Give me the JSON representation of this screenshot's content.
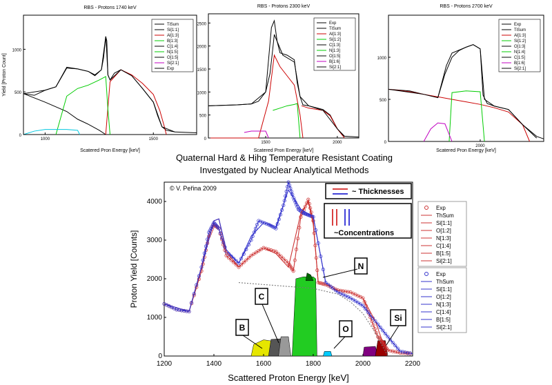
{
  "heading": {
    "line1": "Quaternal Hard & Hihg Temperature Resistant Coating",
    "line2": "Investgated by Nuclear Analytical Methods"
  },
  "chart_data": [
    {
      "type": "line",
      "title": "RBS - Protons 1740 keV",
      "xlabel": "Scatered Pron Energy [keV]",
      "ylabel": "Yield [Proton Count]",
      "xlim": [
        900,
        1700
      ],
      "ylim": [
        0,
        1400
      ],
      "xticks": [
        1000,
        1500
      ],
      "yticks": [
        0,
        500,
        1000
      ],
      "legend": [
        "TiSum",
        "Si[1:1]",
        "Al[1:3]",
        "B[1:3]",
        "C[1:4]",
        "N[1:5]",
        "O[1:5]",
        "Si[2:1]",
        "Exp"
      ],
      "series": [
        {
          "name": "Exp",
          "color": "#000000",
          "x": [
            900,
            950,
            1000,
            1050,
            1100,
            1150,
            1200,
            1230,
            1260,
            1270,
            1280,
            1285,
            1290,
            1300,
            1320,
            1350,
            1400,
            1450,
            1500,
            1520,
            1540,
            1560,
            1600,
            1700
          ],
          "y": [
            480,
            460,
            520,
            560,
            790,
            770,
            740,
            690,
            760,
            900,
            1150,
            950,
            700,
            640,
            720,
            760,
            690,
            540,
            380,
            220,
            90,
            50,
            30,
            20
          ]
        },
        {
          "name": "Si[1:1]",
          "color": "#000000",
          "x": [
            900,
            1000,
            1100,
            1150,
            1200,
            1250,
            1280
          ],
          "y": [
            480,
            380,
            270,
            180,
            120,
            50,
            0
          ]
        },
        {
          "name": "Al[1:3]",
          "color": "#cc0000",
          "x": [
            1280,
            1300,
            1350,
            1400,
            1450,
            1500,
            1530,
            1550,
            1560
          ],
          "y": [
            0,
            620,
            760,
            700,
            600,
            470,
            280,
            100,
            0
          ]
        },
        {
          "name": "B[1:3]",
          "color": "#00cc00",
          "x": [
            1050,
            1100,
            1150,
            1200,
            1250,
            1280,
            1290,
            1300
          ],
          "y": [
            0,
            450,
            540,
            580,
            640,
            680,
            300,
            0
          ]
        },
        {
          "name": "N[1:5]",
          "color": "#00c8e0",
          "x": [
            900,
            950,
            1000,
            1100,
            1150,
            1160
          ],
          "y": [
            0,
            40,
            60,
            60,
            50,
            0
          ]
        },
        {
          "name": "TiSum",
          "color": "#000000",
          "x": [
            900,
            1000,
            1050,
            1100,
            1150,
            1200,
            1230,
            1260,
            1280,
            1285,
            1290,
            1300,
            1350,
            1400,
            1450,
            1500,
            1540,
            1600
          ],
          "y": [
            480,
            520,
            560,
            780,
            770,
            740,
            700,
            760,
            1150,
            1100,
            700,
            640,
            760,
            690,
            540,
            380,
            90,
            30
          ]
        }
      ]
    },
    {
      "type": "line",
      "title": "RBS - Protons 2300 keV",
      "xlabel": "Scatered Pron Energy [keV]",
      "ylabel": "",
      "xlim": [
        1100,
        2150
      ],
      "ylim": [
        0,
        2700
      ],
      "xticks": [
        1500,
        2000
      ],
      "yticks": [
        0,
        500,
        1000,
        1500,
        2000,
        2500
      ],
      "legend": [
        "Exp",
        "TiSum",
        "Al[1:3]",
        "Si[1:2]",
        "C[1:3]",
        "N[1:3]",
        "O[1:5]",
        "B[1:6]",
        "Si[2:1]"
      ],
      "series": [
        {
          "name": "Exp",
          "color": "#000000",
          "x": [
            1100,
            1200,
            1300,
            1400,
            1450,
            1500,
            1530,
            1550,
            1560,
            1580,
            1600,
            1650,
            1700,
            1720,
            1740,
            1760,
            1800,
            1900,
            1950,
            2000,
            2050,
            2150
          ],
          "y": [
            700,
            710,
            720,
            740,
            800,
            1000,
            1400,
            1950,
            2250,
            2100,
            1850,
            1800,
            1700,
            1200,
            900,
            720,
            700,
            620,
            500,
            200,
            40,
            20
          ]
        },
        {
          "name": "Al[1:3]",
          "color": "#cc0000",
          "x": [
            1100,
            1300,
            1450,
            1520,
            1560,
            1600,
            1650,
            1700,
            1740,
            1760
          ],
          "y": [
            0,
            0,
            0,
            800,
            1800,
            1550,
            1350,
            1150,
            500,
            0
          ]
        },
        {
          "name": "N[1:3]",
          "color": "#00cc00",
          "x": [
            1550,
            1600,
            1650,
            1700,
            1720,
            1740
          ],
          "y": [
            600,
            650,
            700,
            730,
            750,
            0
          ]
        },
        {
          "name": "B[1:6]",
          "color": "#c000c0",
          "x": [
            1350,
            1400,
            1500,
            1520
          ],
          "y": [
            120,
            150,
            150,
            0
          ]
        },
        {
          "name": "Si[2:1]",
          "color": "#cc0000",
          "x": [
            1750,
            1800,
            1900,
            1950,
            2000,
            2050
          ],
          "y": [
            700,
            650,
            600,
            480,
            200,
            0
          ]
        },
        {
          "name": "TiSum",
          "color": "#000000",
          "x": [
            1100,
            1300,
            1400,
            1500,
            1540,
            1560,
            1580,
            1620,
            1700,
            1740,
            1800,
            1900,
            2000,
            2050
          ],
          "y": [
            700,
            720,
            740,
            1000,
            2400,
            2550,
            2100,
            1800,
            1650,
            900,
            700,
            600,
            200,
            30
          ]
        }
      ]
    },
    {
      "type": "line",
      "title": "RBS - Protons 2700 keV",
      "xlabel": "Scatered Pron Energy [keV]",
      "ylabel": "",
      "xlim": [
        1350,
        2450
      ],
      "ylim": [
        0,
        1500
      ],
      "xticks": [
        2000
      ],
      "yticks": [
        0,
        500,
        1000
      ],
      "legend": [
        "Exp",
        "TiSum",
        "Al[1:3]",
        "Si[1:2]",
        "O[1:3]",
        "N[1:4]",
        "C[1:5]",
        "B[1:6]",
        "Si[2:1]"
      ],
      "series": [
        {
          "name": "Exp",
          "color": "#000000",
          "x": [
            1350,
            1500,
            1600,
            1700,
            1750,
            1800,
            1850,
            1900,
            1950,
            2000,
            2020,
            2050,
            2100,
            2200,
            2300,
            2400,
            2450
          ],
          "y": [
            620,
            600,
            560,
            520,
            800,
            1000,
            1080,
            1120,
            1150,
            1100,
            550,
            450,
            420,
            380,
            200,
            60,
            30
          ]
        },
        {
          "name": "Al[1:3]",
          "color": "#cc0000",
          "x": [
            1350,
            1500,
            1600,
            1700,
            1800,
            1900,
            2000,
            2100,
            2200,
            2300,
            2350
          ],
          "y": [
            620,
            590,
            560,
            530,
            500,
            470,
            440,
            400,
            350,
            200,
            0
          ]
        },
        {
          "name": "N[1:4]",
          "color": "#00cc00",
          "x": [
            1780,
            1800,
            1900,
            2000,
            2030
          ],
          "y": [
            0,
            580,
            600,
            590,
            0
          ]
        },
        {
          "name": "B[1:6]",
          "color": "#c000c0",
          "x": [
            1600,
            1650,
            1700,
            1750,
            1800
          ],
          "y": [
            0,
            150,
            220,
            210,
            0
          ]
        },
        {
          "name": "TiSum",
          "color": "#000000",
          "x": [
            1350,
            1600,
            1700,
            1760,
            1800,
            1900,
            1950,
            2000,
            2030,
            2100,
            2200,
            2300,
            2400
          ],
          "y": [
            620,
            560,
            520,
            900,
            1050,
            1120,
            1150,
            1100,
            500,
            420,
            380,
            200,
            40
          ]
        }
      ]
    },
    {
      "type": "area",
      "title": "",
      "xlabel": "Scattered Proton Energy [keV]",
      "ylabel": "Proton Yield [Counts]",
      "xlim": [
        1200,
        2200
      ],
      "ylim": [
        0,
        4500
      ],
      "xticks": [
        1200,
        1400,
        1600,
        1800,
        2000,
        2200
      ],
      "yticks": [
        0,
        1000,
        2000,
        3000,
        4000
      ],
      "copyright": "© V. Peřina 2009",
      "callouts": {
        "thickness": "~ Thicknesses",
        "concentration": "~Concentrations"
      },
      "element_labels": [
        "B",
        "C",
        "N",
        "O",
        "Si"
      ],
      "legend_groups": [
        [
          "Exp",
          "ThSum",
          "Si[1:1]",
          "O[1:2]",
          "N[1:3]",
          "C[1:4]",
          "B[1:5]",
          "Si[2:1]"
        ],
        [
          "Exp",
          "ThSum",
          "Si[1:1]",
          "O[1:2]",
          "N[1:3]",
          "C[1:4]",
          "B[1:5]",
          "Si[2:1]"
        ]
      ],
      "series": [
        {
          "name": "Exp",
          "color": "#cc3333",
          "marker": "circle",
          "x": [
            1200,
            1250,
            1300,
            1350,
            1380,
            1400,
            1420,
            1450,
            1500,
            1550,
            1600,
            1650,
            1700,
            1720,
            1750,
            1780,
            1800,
            1820,
            1850,
            1900,
            1950,
            2000,
            2030,
            2060,
            2080,
            2100,
            2150,
            2200
          ],
          "y": [
            1350,
            1200,
            1150,
            2200,
            3100,
            3400,
            3300,
            2600,
            2300,
            2600,
            2800,
            2700,
            2400,
            2200,
            3600,
            4050,
            3500,
            1900,
            1850,
            1700,
            1650,
            1500,
            1000,
            500,
            350,
            150,
            80,
            60
          ]
        },
        {
          "name": "Exp",
          "color": "#3333cc",
          "marker": "circle",
          "x": [
            1200,
            1250,
            1300,
            1350,
            1380,
            1400,
            1420,
            1450,
            1500,
            1550,
            1580,
            1620,
            1650,
            1680,
            1700,
            1720,
            1740,
            1760,
            1780,
            1800,
            1850,
            1900,
            1950,
            2000,
            2050,
            2100,
            2150,
            2200
          ],
          "y": [
            1350,
            1200,
            1150,
            2300,
            3200,
            3450,
            3300,
            2700,
            2400,
            3000,
            3500,
            3400,
            3300,
            3900,
            4500,
            4100,
            3800,
            3700,
            3650,
            3600,
            1900,
            1650,
            1500,
            1300,
            900,
            500,
            120,
            60
          ]
        },
        {
          "name": "B[1:5]",
          "color": "#e6e600",
          "fill": true,
          "x": [
            1550,
            1560,
            1600,
            1640,
            1660
          ],
          "y": [
            0,
            300,
            420,
            380,
            0
          ]
        },
        {
          "name": "C[1:4]",
          "color": "#555555",
          "fill": true,
          "x": [
            1620,
            1630,
            1680,
            1690
          ],
          "y": [
            0,
            430,
            450,
            0
          ]
        },
        {
          "name": "C[1:4]",
          "color": "#999999",
          "fill": true,
          "x": [
            1660,
            1670,
            1700,
            1710
          ],
          "y": [
            0,
            500,
            500,
            0
          ]
        },
        {
          "name": "N[1:3]",
          "color": "#22cc22",
          "fill": true,
          "x": [
            1715,
            1730,
            1760,
            1800,
            1810,
            1815
          ],
          "y": [
            0,
            2000,
            2050,
            2050,
            2000,
            0
          ]
        },
        {
          "name": "N[1:3]",
          "color": "#006600",
          "fill": true,
          "x": [
            1770,
            1775,
            1790,
            1800
          ],
          "y": [
            1950,
            2150,
            2100,
            1950
          ]
        },
        {
          "name": "O[1:2]",
          "color": "#00ccff",
          "fill": true,
          "x": [
            1840,
            1845,
            1870,
            1875
          ],
          "y": [
            0,
            120,
            120,
            0
          ]
        },
        {
          "name": "Si[2:1]",
          "color": "#800080",
          "fill": true,
          "x": [
            2000,
            2005,
            2050,
            2060
          ],
          "y": [
            0,
            230,
            250,
            0
          ]
        },
        {
          "name": "Si[1:1]",
          "color": "#990000",
          "fill": true,
          "x": [
            2050,
            2060,
            2090,
            2100
          ],
          "y": [
            0,
            400,
            400,
            0
          ]
        },
        {
          "name": "ThSum",
          "color": "#cc3333",
          "x": [
            1200,
            1300,
            1350,
            1400,
            1420,
            1450,
            1500,
            1550,
            1600,
            1650,
            1700,
            1750,
            1780,
            1800,
            1820,
            1850,
            1900,
            1950,
            2000,
            2050,
            2080,
            2100,
            2150
          ],
          "y": [
            1350,
            1150,
            2300,
            3500,
            3550,
            2700,
            2300,
            2600,
            2800,
            2650,
            2300,
            3700,
            4000,
            3400,
            1900,
            1850,
            1700,
            1650,
            1500,
            900,
            350,
            150,
            80
          ]
        },
        {
          "name": "ThSum",
          "color": "#3333cc",
          "x": [
            1200,
            1300,
            1350,
            1400,
            1420,
            1450,
            1500,
            1550,
            1600,
            1650,
            1700,
            1750,
            1800,
            1850,
            1900,
            1950,
            2000,
            2050,
            2100,
            2150
          ],
          "y": [
            1350,
            1150,
            2300,
            3500,
            3550,
            2750,
            2400,
            3100,
            3450,
            3350,
            4300,
            3800,
            3600,
            1900,
            1650,
            1500,
            1300,
            900,
            500,
            120
          ]
        },
        {
          "name": "Si[1:1]",
          "color": "#777777",
          "dash": "2,2",
          "x": [
            1500,
            1600,
            1700,
            1800,
            1900,
            1950,
            2000,
            2050,
            2100
          ],
          "y": [
            1900,
            1850,
            1800,
            1750,
            1600,
            1400,
            1100,
            600,
            0
          ]
        }
      ]
    }
  ]
}
